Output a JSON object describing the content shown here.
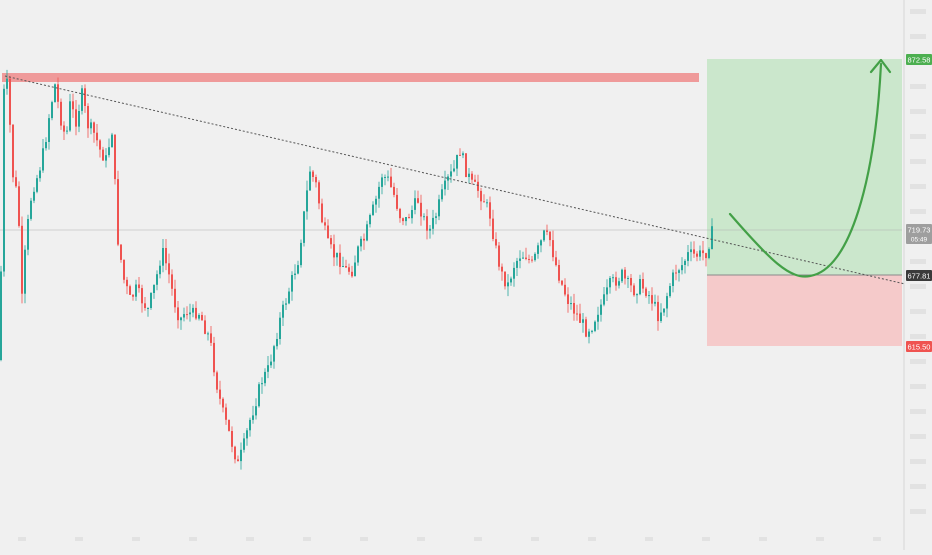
{
  "chart_data": {
    "type": "candlestick",
    "y_axis": {
      "position": "right",
      "labels_visible": false,
      "note": "tick labels too faint to read"
    },
    "x_axis": {
      "labels_visible": false
    },
    "candle_colors": {
      "up": "#26a69a",
      "down": "#ef5350"
    },
    "reference_line": {
      "value": "719.73",
      "color": "#b0b0b0"
    },
    "badges": {
      "target": {
        "text": "872.58",
        "color": "#4caf50"
      },
      "last_price": {
        "text": "719.73",
        "subtext": "05:49",
        "color": "#9e9e9e"
      },
      "entry": {
        "text": "677.81",
        "color": "#3a3a3a"
      },
      "stop": {
        "text": "615.50",
        "color": "#ef5350"
      }
    },
    "resistance_zone": {
      "color": "#ef9a9a"
    },
    "trendline": {
      "style": "dotted",
      "color": "#555555"
    },
    "position_tool": {
      "profit_color": "#c8e6c9",
      "loss_color": "#f4c7c7"
    },
    "projection_curve": {
      "color": "#43a047"
    },
    "candles": []
  }
}
